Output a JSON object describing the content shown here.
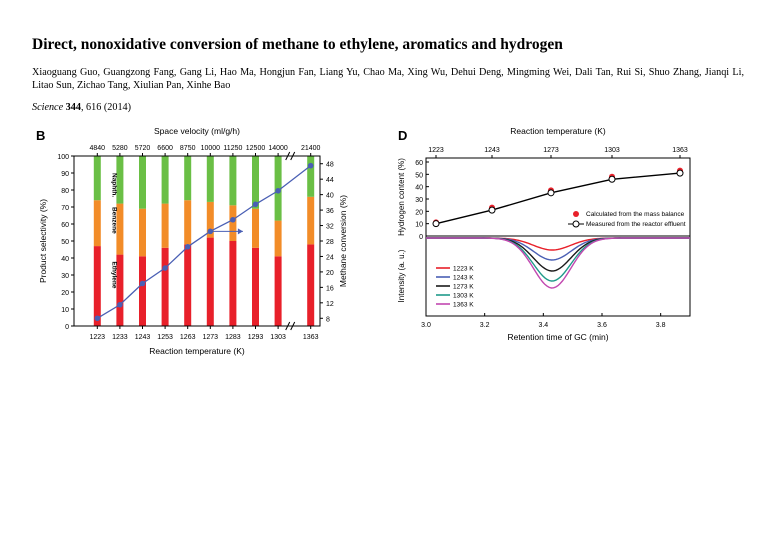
{
  "paper": {
    "title": "Direct, nonoxidative conversion of methane to ethylene, aromatics and hydrogen",
    "authors": "Xiaoguang Guo, Guangzong Fang, Gang Li, Hao Ma, Hongjun Fan, Liang Yu, Chao Ma, Xing Wu, Dehui Deng, Mingming Wei, Dali Tan, Rui Si, Shuo Zhang, Jianqi Li, Litao Sun, Zichao Tang, Xiulian Pan, Xinhe Bao",
    "journal": "Science",
    "volume": "344",
    "pages_year": ", 616 (2014)"
  },
  "colors": {
    "ethylene": "#e8202a",
    "benzene": "#f28c28",
    "naphth": "#6abf45",
    "conversion": "#4a5fb4"
  },
  "chart_data": [
    {
      "panel": "B",
      "type": "bar",
      "stacked": true,
      "top_axis_label": "Space velocity (ml/g/h)",
      "top_ticks": [
        "4840",
        "5280",
        "5720",
        "6600",
        "8750",
        "10000",
        "11250",
        "12500",
        "14000",
        "21400"
      ],
      "categories": [
        "1223",
        "1233",
        "1243",
        "1253",
        "1263",
        "1273",
        "1283",
        "1293",
        "1303",
        "1363"
      ],
      "xlabel": "Reaction temperature (K)",
      "ylabel": "Product selectivity (%)",
      "y2label": "Methane conversion (%)",
      "ylim": [
        0,
        100
      ],
      "y2lim": [
        6,
        50
      ],
      "yticks": [
        "0",
        "10",
        "20",
        "30",
        "40",
        "50",
        "60",
        "70",
        "80",
        "90",
        "100"
      ],
      "y2ticks": [
        "8",
        "12",
        "16",
        "20",
        "24",
        "28",
        "32",
        "36",
        "40",
        "44",
        "48"
      ],
      "series": [
        {
          "name": "Ethylene",
          "values": [
            47,
            42,
            41,
            46,
            48,
            52,
            50,
            46,
            41,
            48
          ]
        },
        {
          "name": "Benzene",
          "values": [
            27,
            30,
            28,
            26,
            26,
            21,
            21,
            23,
            21,
            28
          ]
        },
        {
          "name": "Naphth.",
          "values": [
            26,
            28,
            31,
            28,
            26,
            27,
            29,
            31,
            38,
            24
          ]
        },
        {
          "name": "Methane conversion",
          "axis": "right",
          "values": [
            8.0,
            11.5,
            17.0,
            21.0,
            26.5,
            30.5,
            33.5,
            37.5,
            41.0,
            47.5
          ]
        }
      ]
    },
    {
      "panel": "D",
      "type": "line",
      "top_axis_label": "Reaction temperature (K)",
      "top_ticks": [
        "1223",
        "1243",
        "1273",
        "1303",
        "1363"
      ],
      "upper": {
        "ylabel": "Hydrogen content (%)",
        "yticks": [
          "0",
          "10",
          "20",
          "30",
          "40",
          "50",
          "60"
        ],
        "ylim": [
          0,
          60
        ],
        "legend": [
          "Calculated from the mass balance",
          "Measured from the reactor effluent"
        ],
        "calculated": [
          {
            "x": 1223,
            "y": 11
          },
          {
            "x": 1243,
            "y": 23
          },
          {
            "x": 1273,
            "y": 37
          },
          {
            "x": 1303,
            "y": 48
          },
          {
            "x": 1363,
            "y": 53
          }
        ],
        "measured": [
          {
            "x": 1223,
            "y": 10
          },
          {
            "x": 1243,
            "y": 21
          },
          {
            "x": 1273,
            "y": 35
          },
          {
            "x": 1303,
            "y": 46
          },
          {
            "x": 1363,
            "y": 51
          }
        ]
      },
      "lower": {
        "ylabel": "Intensity (a. u.)",
        "xlabel": "Retention time of GC (min)",
        "xticks": [
          "3.0",
          "3.2",
          "3.4",
          "3.6",
          "3.8"
        ],
        "xlim": [
          3.0,
          3.9
        ],
        "peak_center": 3.43,
        "peak_width": 0.09,
        "series": [
          {
            "name": "1223 K",
            "color": "#e8202a",
            "depth": 0.12
          },
          {
            "name": "1243 K",
            "color": "#4a5fb4",
            "depth": 0.22
          },
          {
            "name": "1273 K",
            "color": "#1a1a1a",
            "depth": 0.33
          },
          {
            "name": "1303 K",
            "color": "#1f9a8a",
            "depth": 0.43
          },
          {
            "name": "1363 K",
            "color": "#c248b0",
            "depth": 0.5
          }
        ]
      }
    }
  ],
  "figure": {
    "panel_b_letter": "B",
    "panel_d_letter": "D",
    "bar_labels": {
      "naphth": "Naphth.",
      "benzene": "Benzene",
      "ethylene": "Ethylene"
    }
  }
}
